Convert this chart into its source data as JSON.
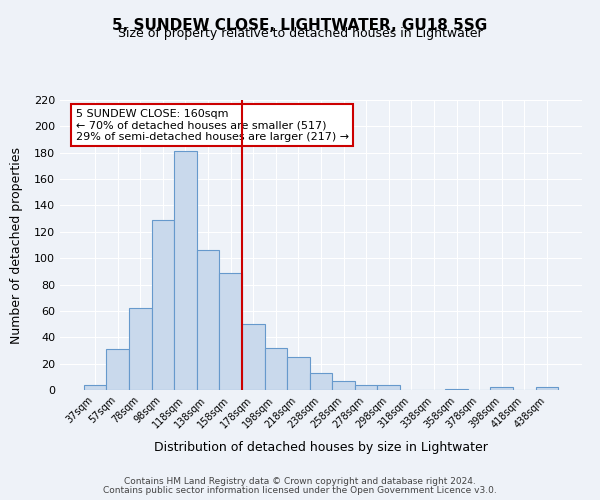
{
  "title1": "5, SUNDEW CLOSE, LIGHTWATER, GU18 5SG",
  "title2": "Size of property relative to detached houses in Lightwater",
  "xlabel": "Distribution of detached houses by size in Lightwater",
  "ylabel": "Number of detached properties",
  "categories": [
    "37sqm",
    "57sqm",
    "78sqm",
    "98sqm",
    "118sqm",
    "138sqm",
    "158sqm",
    "178sqm",
    "198sqm",
    "218sqm",
    "238sqm",
    "258sqm",
    "278sqm",
    "298sqm",
    "318sqm",
    "338sqm",
    "358sqm",
    "378sqm",
    "398sqm",
    "418sqm",
    "438sqm"
  ],
  "values": [
    4,
    31,
    62,
    129,
    181,
    106,
    89,
    50,
    32,
    25,
    13,
    7,
    4,
    4,
    0,
    0,
    1,
    0,
    2,
    0,
    2
  ],
  "bar_color": "#c9d9ec",
  "bar_edge_color": "#6699cc",
  "marker_label": "5 SUNDEW CLOSE: 160sqm",
  "annotation_line1": "← 70% of detached houses are smaller (517)",
  "annotation_line2": "29% of semi-detached houses are larger (217) →",
  "ylim": [
    0,
    220
  ],
  "yticks": [
    0,
    20,
    40,
    60,
    80,
    100,
    120,
    140,
    160,
    180,
    200,
    220
  ],
  "bg_color": "#eef2f8",
  "plot_bg_color": "#eef2f8",
  "footer1": "Contains HM Land Registry data © Crown copyright and database right 2024.",
  "footer2": "Contains public sector information licensed under the Open Government Licence v3.0.",
  "annotation_box_color": "#ffffff",
  "annotation_border_color": "#cc0000",
  "vline_color": "#cc0000",
  "grid_color": "#ffffff",
  "vline_x": 6.5
}
